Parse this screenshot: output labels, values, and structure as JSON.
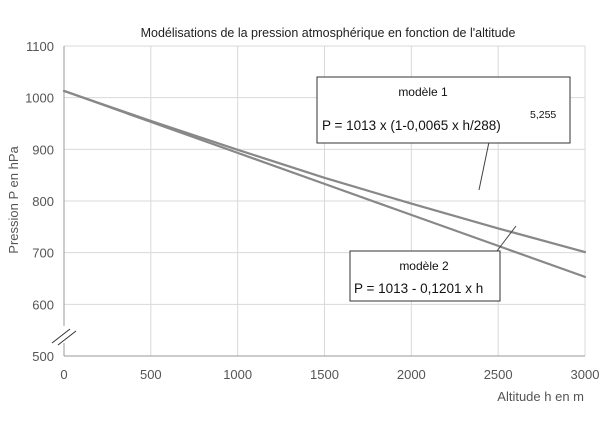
{
  "chart_data": {
    "type": "line",
    "title": "Modélisations de la pression atmosphérique en fonction de l'altitude",
    "xlabel": "Altitude h en m",
    "ylabel": "Pression P en hPa",
    "xlim": [
      0,
      3000
    ],
    "ylim": [
      500,
      1100
    ],
    "y_axis_break": true,
    "x_ticks": [
      0,
      500,
      1000,
      1500,
      2000,
      2500,
      3000
    ],
    "y_ticks": [
      500,
      600,
      700,
      800,
      900,
      1000,
      1100
    ],
    "x_tick_labels": [
      "0",
      "500",
      "1000",
      "1500",
      "2000",
      "2500",
      "3000"
    ],
    "y_tick_labels": [
      "500",
      "600",
      "700",
      "800",
      "900",
      "1000",
      "1100"
    ],
    "grid": true,
    "series_color": "#888888",
    "series": [
      {
        "name": "modèle 1",
        "equation_text": "P = 1013 x (1-0,0065 x h/288)",
        "equation_exponent": "5,255",
        "x": [
          0,
          500,
          1000,
          1500,
          2000,
          2500,
          3000
        ],
        "values": [
          1013,
          955,
          899,
          845,
          795,
          747,
          701
        ]
      },
      {
        "name": "modèle 2",
        "equation_text": "P = 1013 - 0,1201 x h",
        "x": [
          0,
          500,
          1000,
          1500,
          2000,
          2500,
          3000
        ],
        "values": [
          1013,
          953,
          893,
          833,
          773,
          713,
          653
        ]
      }
    ]
  }
}
